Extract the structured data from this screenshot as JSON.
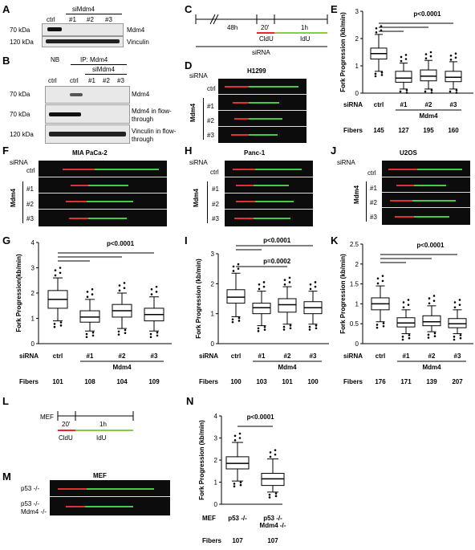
{
  "panels": {
    "A": {
      "letter": "A",
      "header": "siMdm4",
      "lanes": [
        "ctrl",
        "#1",
        "#2",
        "#3"
      ],
      "mw": [
        "70 kDa",
        "120 kDa"
      ],
      "rows": [
        "Mdm4",
        "Vinculin"
      ]
    },
    "B": {
      "letter": "B",
      "nb": "NB",
      "ip": "IP: Mdm4",
      "header": "siMdm4",
      "lanes": [
        "ctrl",
        "ctrl",
        "#1",
        "#2",
        "#3"
      ],
      "mw": [
        "70 kDa",
        "70 kDa",
        "120 kDa"
      ],
      "rows": [
        "Mdm4",
        "Mdm4 in flow-through",
        "Vinculin in flow-through"
      ]
    },
    "C": {
      "letter": "C",
      "t1": "48h",
      "t2": "20'",
      "t3": "1h",
      "cldu": "CldU",
      "idu": "IdU",
      "sirna": "siRNA"
    },
    "D": {
      "letter": "D",
      "cell": "H1299",
      "sirna": "siRNA",
      "rows": [
        "ctrl",
        "#1",
        "#2",
        "#3"
      ],
      "group": "Mdm4"
    },
    "F": {
      "letter": "F",
      "cell": "MIA PaCa-2",
      "sirna": "siRNA",
      "rows": [
        "ctrl",
        "#1",
        "#2",
        "#3"
      ],
      "group": "Mdm4"
    },
    "H": {
      "letter": "H",
      "cell": "Panc-1",
      "sirna": "siRNA",
      "rows": [
        "ctrl",
        "#1",
        "#2",
        "#3"
      ],
      "group": "Mdm4"
    },
    "J": {
      "letter": "J",
      "cell": "U2OS",
      "sirna": "siRNA",
      "rows": [
        "ctrl",
        "#1",
        "#2",
        "#3"
      ],
      "group": "Mdm4"
    },
    "L": {
      "letter": "L",
      "mef": "MEF",
      "t2": "20'",
      "t3": "1h",
      "cldu": "CldU",
      "idu": "IdU"
    },
    "M": {
      "letter": "M",
      "cell": "MEF",
      "rows": [
        "p53 -/-",
        "p53 -/-",
        "Mdm4 -/-"
      ]
    }
  },
  "chart_data": [
    {
      "panel": "E",
      "letter": "E",
      "type": "box",
      "ylabel": "Fork Progression (kb/min)",
      "ylim": [
        0,
        3
      ],
      "yticks": [
        0,
        1,
        2,
        3
      ],
      "categories": [
        "ctrl",
        "#1",
        "#2",
        "#3"
      ],
      "rowlabel": "siRNA",
      "group": "Mdm4",
      "fibers_label": "Fibers",
      "fibers": [
        145,
        127,
        195,
        160
      ],
      "sig": [
        "p<0.0001"
      ],
      "boxes": [
        {
          "wl": 0.8,
          "q1": 1.25,
          "med": 1.45,
          "q3": 1.65,
          "wh": 2.15
        },
        {
          "wl": 0.15,
          "q1": 0.4,
          "med": 0.55,
          "q3": 0.8,
          "wh": 1.1
        },
        {
          "wl": 0.15,
          "q1": 0.45,
          "med": 0.62,
          "q3": 0.85,
          "wh": 1.2
        },
        {
          "wl": 0.15,
          "q1": 0.42,
          "med": 0.58,
          "q3": 0.8,
          "wh": 1.15
        }
      ]
    },
    {
      "panel": "G",
      "letter": "G",
      "type": "box",
      "ylabel": "Fork Progression(kb/min)",
      "ylim": [
        0,
        4
      ],
      "yticks": [
        0,
        1,
        2,
        3,
        4
      ],
      "categories": [
        "ctrl",
        "#1",
        "#2",
        "#3"
      ],
      "rowlabel": "siRNA",
      "group": "Mdm4",
      "fibers_label": "Fibers",
      "fibers": [
        101,
        108,
        104,
        109
      ],
      "sig": [
        "p<0.0001"
      ],
      "boxes": [
        {
          "wl": 0.9,
          "q1": 1.4,
          "med": 1.75,
          "q3": 2.1,
          "wh": 2.6
        },
        {
          "wl": 0.5,
          "q1": 0.85,
          "med": 1.05,
          "q3": 1.3,
          "wh": 1.75
        },
        {
          "wl": 0.6,
          "q1": 1.05,
          "med": 1.3,
          "q3": 1.55,
          "wh": 2.0
        },
        {
          "wl": 0.5,
          "q1": 0.9,
          "med": 1.15,
          "q3": 1.4,
          "wh": 1.85
        }
      ]
    },
    {
      "panel": "I",
      "letter": "I",
      "type": "box",
      "ylabel": "Fork Progression (kb/min)",
      "ylim": [
        0,
        3
      ],
      "yticks": [
        0,
        1,
        2,
        3
      ],
      "categories": [
        "ctrl",
        "#1",
        "#2",
        "#3"
      ],
      "rowlabel": "siRNA",
      "group": "Mdm4",
      "fibers_label": "Fibers",
      "fibers": [
        100,
        103,
        101,
        100
      ],
      "sig": [
        "p<0.0001",
        "p=0.0002"
      ],
      "boxes": [
        {
          "wl": 0.9,
          "q1": 1.35,
          "med": 1.55,
          "q3": 1.8,
          "wh": 2.35
        },
        {
          "wl": 0.6,
          "q1": 1.0,
          "med": 1.2,
          "q3": 1.35,
          "wh": 1.75
        },
        {
          "wl": 0.65,
          "q1": 1.05,
          "med": 1.3,
          "q3": 1.5,
          "wh": 1.9
        },
        {
          "wl": 0.65,
          "q1": 1.0,
          "med": 1.2,
          "q3": 1.4,
          "wh": 1.75
        }
      ]
    },
    {
      "panel": "K",
      "letter": "K",
      "type": "box",
      "ylabel": "Fork Progression (kb/min)",
      "ylim": [
        0,
        2.5
      ],
      "yticks": [
        0,
        0.5,
        1,
        1.5,
        2,
        2.5
      ],
      "categories": [
        "ctrl",
        "#1",
        "#2",
        "#3"
      ],
      "rowlabel": "siRNA",
      "group": "Mdm4",
      "fibers_label": "Fibers",
      "fibers": [
        176,
        171,
        139,
        207
      ],
      "sig": [
        "p<0.0001"
      ],
      "boxes": [
        {
          "wl": 0.55,
          "q1": 0.85,
          "med": 1.0,
          "q3": 1.15,
          "wh": 1.45
        },
        {
          "wl": 0.25,
          "q1": 0.42,
          "med": 0.52,
          "q3": 0.65,
          "wh": 0.85
        },
        {
          "wl": 0.3,
          "q1": 0.45,
          "med": 0.55,
          "q3": 0.7,
          "wh": 0.95
        },
        {
          "wl": 0.25,
          "q1": 0.4,
          "med": 0.5,
          "q3": 0.63,
          "wh": 0.85
        }
      ]
    },
    {
      "panel": "N",
      "letter": "N",
      "type": "box",
      "ylabel": "Fork Progression (kb/min)",
      "ylim": [
        0,
        4
      ],
      "yticks": [
        0,
        1,
        2,
        3,
        4
      ],
      "categories": [
        "p53 -/-",
        "p53 -/- Mdm4 -/-"
      ],
      "rowlabel": "MEF",
      "fibers_label": "Fibers",
      "fibers": [
        107,
        107
      ],
      "sig": [
        "p<0.0001"
      ],
      "boxes": [
        {
          "wl": 1.05,
          "q1": 1.6,
          "med": 1.85,
          "q3": 2.15,
          "wh": 2.8
        },
        {
          "wl": 0.55,
          "q1": 0.85,
          "med": 1.15,
          "q3": 1.4,
          "wh": 2.05
        }
      ]
    }
  ]
}
